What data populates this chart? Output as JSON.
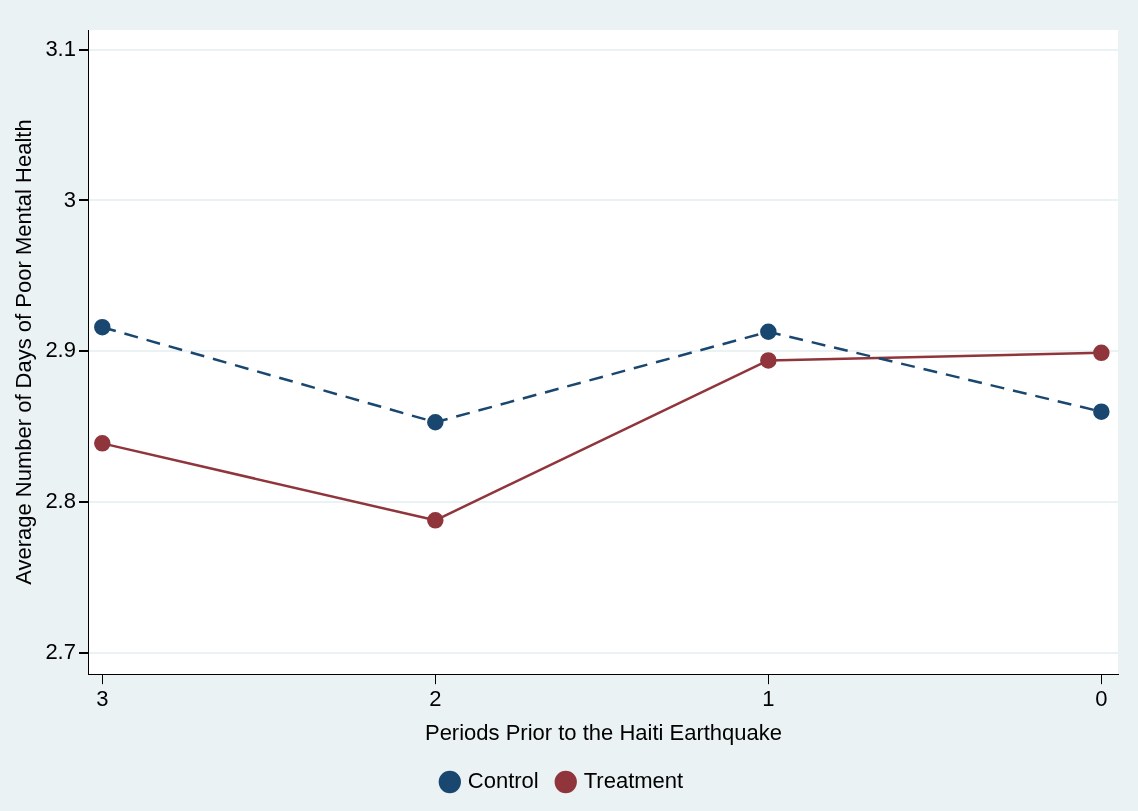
{
  "chart_data": {
    "type": "line",
    "xlabel": "Periods Prior to the Haiti Earthquake",
    "ylabel": "Average Number of Days of Poor Mental Health",
    "x": [
      3,
      2,
      1,
      0
    ],
    "series": [
      {
        "name": "Control",
        "color": "#1a476f",
        "values": [
          2.916,
          2.853,
          2.913,
          2.86
        ],
        "line_style": "dashed"
      },
      {
        "name": "Treatment",
        "color": "#90353b",
        "values": [
          2.839,
          2.788,
          2.894,
          2.899
        ],
        "line_style": "solid"
      }
    ],
    "xlim": [
      3.04,
      -0.05
    ],
    "xticks": [
      3,
      2,
      1,
      0
    ],
    "ylim": [
      2.686,
      3.113
    ],
    "yticks": [
      2.7,
      2.8,
      2.9,
      3,
      3.1
    ],
    "grid": "y",
    "legend": "bottom",
    "marker": "circle"
  }
}
